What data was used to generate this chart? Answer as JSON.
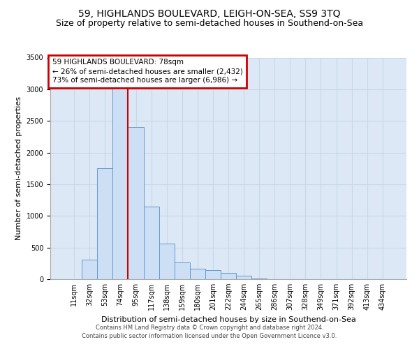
{
  "title": "59, HIGHLANDS BOULEVARD, LEIGH-ON-SEA, SS9 3TQ",
  "subtitle": "Size of property relative to semi-detached houses in Southend-on-Sea",
  "xlabel": "Distribution of semi-detached houses by size in Southend-on-Sea",
  "ylabel": "Number of semi-detached properties",
  "footer1": "Contains HM Land Registry data © Crown copyright and database right 2024.",
  "footer2": "Contains public sector information licensed under the Open Government Licence v3.0.",
  "annotation_line0": "59 HIGHLANDS BOULEVARD: 78sqm",
  "annotation_line1": "← 26% of semi-detached houses are smaller (2,432)",
  "annotation_line2": "73% of semi-detached houses are larger (6,986) →",
  "bar_categories": [
    "11sqm",
    "32sqm",
    "53sqm",
    "74sqm",
    "95sqm",
    "117sqm",
    "138sqm",
    "159sqm",
    "180sqm",
    "201sqm",
    "222sqm",
    "244sqm",
    "265sqm",
    "286sqm",
    "307sqm",
    "328sqm",
    "349sqm",
    "371sqm",
    "392sqm",
    "413sqm",
    "434sqm"
  ],
  "bar_values": [
    5,
    310,
    1750,
    3050,
    2400,
    1150,
    560,
    270,
    170,
    140,
    100,
    50,
    10,
    0,
    0,
    0,
    0,
    0,
    0,
    0,
    0
  ],
  "bar_color": "#ccdff5",
  "bar_edge_color": "#6699cc",
  "vline_color": "#cc0000",
  "vline_x_index": 3.5,
  "annotation_box_edge_color": "#cc0000",
  "ylim_max": 3500,
  "yticks": [
    0,
    500,
    1000,
    1500,
    2000,
    2500,
    3000,
    3500
  ],
  "grid_color": "#c8d8e8",
  "background_color": "#dce8f5",
  "title_fontsize": 10,
  "subtitle_fontsize": 9,
  "ylabel_fontsize": 8,
  "xlabel_fontsize": 8,
  "tick_fontsize": 7,
  "annotation_fontsize": 7.5
}
